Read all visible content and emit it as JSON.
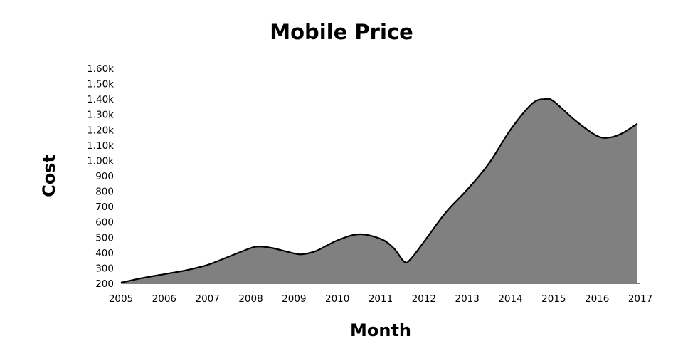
{
  "chart_data": {
    "type": "area",
    "title": "Mobile Price",
    "xlabel": "Month",
    "ylabel": "Cost",
    "x_ticks": [
      "2005",
      "2006",
      "2007",
      "2008",
      "2009",
      "2010",
      "2011",
      "2012",
      "2013",
      "2014",
      "2015",
      "2016",
      "2017"
    ],
    "y_ticks": [
      "200",
      "300",
      "400",
      "500",
      "600",
      "700",
      "800",
      "900",
      "1.00k",
      "1.10k",
      "1.20k",
      "1.30k",
      "1.40k",
      "1.50k",
      "1.60k"
    ],
    "y_tick_values": [
      200,
      300,
      400,
      500,
      600,
      700,
      800,
      900,
      1000,
      1100,
      1200,
      1300,
      1400,
      1500,
      1600
    ],
    "ylim": [
      200,
      1600
    ],
    "xlim": [
      2005,
      2017
    ],
    "grid": false,
    "fill_color": "#808080",
    "line_color": "#000000",
    "series": [
      {
        "x": [
          2005.0,
          2005.5,
          2006.0,
          2006.5,
          2007.0,
          2007.5,
          2008.0,
          2008.2,
          2008.5,
          2009.0,
          2009.2,
          2009.5,
          2010.0,
          2010.5,
          2011.0,
          2011.3,
          2011.55,
          2011.7,
          2012.0,
          2012.5,
          2013.0,
          2013.5,
          2014.0,
          2014.5,
          2014.8,
          2015.0,
          2015.5,
          2016.0,
          2016.3,
          2016.6,
          2016.93
        ],
        "y": [
          205,
          235,
          260,
          285,
          320,
          375,
          430,
          440,
          430,
          395,
          390,
          410,
          480,
          520,
          490,
          430,
          340,
          360,
          470,
          660,
          810,
          980,
          1200,
          1370,
          1400,
          1385,
          1260,
          1160,
          1150,
          1180,
          1240
        ]
      }
    ]
  }
}
